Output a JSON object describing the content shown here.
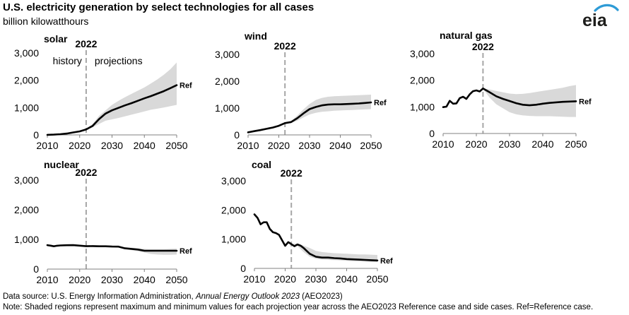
{
  "header": {
    "title": "U.S. electricity generation by select technologies for all cases",
    "units": "billion kilowatthours"
  },
  "logo": {
    "text": "eia",
    "colors": {
      "text": "#1d1d1b",
      "swoosh": "#2e9bd6"
    }
  },
  "footer": {
    "source_prefix": "Data source: U.S. Energy Information Administration, ",
    "source_title": "Annual Energy Outlook 2023",
    "source_suffix": " (AEO2023)",
    "note": "Note: Shaded regions represent maximum and minimum values for each projection year across the AEO2023 Reference case and side cases. Ref=Reference case."
  },
  "colors": {
    "line": "#000000",
    "band": "#d9d9d9",
    "divider": "#a6a6a6",
    "axis": "#808080"
  },
  "chart_data": [
    {
      "type": "area",
      "title": "solar",
      "divider_year": 2022,
      "divider_label": "2022",
      "region_labels": [
        "history",
        "projections"
      ],
      "end_label": "Ref",
      "xlim": [
        2010,
        2050
      ],
      "ylim": [
        0,
        3000
      ],
      "x_ticks": [
        2010,
        2020,
        2030,
        2040,
        2050
      ],
      "y_ticks": [
        0,
        1000,
        2000,
        3000
      ],
      "y_tick_labels": [
        "0",
        "1,000",
        "2,000",
        "3,000"
      ],
      "series": [
        {
          "name": "Ref",
          "x": [
            2010,
            2012,
            2014,
            2016,
            2018,
            2020,
            2022,
            2024,
            2026,
            2028,
            2030,
            2032,
            2034,
            2036,
            2038,
            2040,
            2042,
            2044,
            2046,
            2048,
            2050
          ],
          "values": [
            2,
            10,
            25,
            50,
            90,
            130,
            200,
            330,
            580,
            780,
            900,
            990,
            1080,
            1160,
            1250,
            1340,
            1420,
            1510,
            1600,
            1710,
            1820
          ]
        }
      ],
      "band": {
        "x": [
          2022,
          2024,
          2026,
          2028,
          2030,
          2032,
          2034,
          2036,
          2038,
          2040,
          2042,
          2044,
          2046,
          2048,
          2050
        ],
        "max": [
          220,
          400,
          700,
          900,
          1100,
          1250,
          1380,
          1500,
          1620,
          1740,
          1880,
          2030,
          2200,
          2400,
          2650
        ],
        "min": [
          200,
          280,
          400,
          520,
          570,
          620,
          680,
          740,
          800,
          860,
          920,
          960,
          1000,
          1050,
          1100
        ]
      }
    },
    {
      "type": "area",
      "title": "wind",
      "divider_year": 2022,
      "divider_label": "2022",
      "end_label": "Ref",
      "xlim": [
        2010,
        2050
      ],
      "ylim": [
        0,
        3000
      ],
      "x_ticks": [
        2010,
        2020,
        2030,
        2040,
        2050
      ],
      "y_ticks": [
        0,
        1000,
        2000,
        3000
      ],
      "y_tick_labels": [
        "0",
        "1,000",
        "2,000",
        "3,000"
      ],
      "series": [
        {
          "name": "Ref",
          "x": [
            2010,
            2012,
            2014,
            2016,
            2018,
            2020,
            2022,
            2024,
            2026,
            2028,
            2030,
            2032,
            2034,
            2036,
            2038,
            2040,
            2042,
            2044,
            2046,
            2048,
            2050
          ],
          "values": [
            95,
            140,
            180,
            225,
            275,
            340,
            440,
            480,
            620,
            800,
            960,
            1040,
            1100,
            1130,
            1140,
            1140,
            1150,
            1160,
            1170,
            1190,
            1210
          ]
        }
      ],
      "band": {
        "x": [
          2022,
          2024,
          2026,
          2028,
          2030,
          2032,
          2034,
          2036,
          2038,
          2040,
          2042,
          2044,
          2046,
          2048,
          2050
        ],
        "max": [
          450,
          520,
          720,
          950,
          1150,
          1300,
          1380,
          1420,
          1440,
          1450,
          1460,
          1470,
          1480,
          1490,
          1500
        ],
        "min": [
          430,
          440,
          530,
          650,
          760,
          820,
          860,
          880,
          900,
          910,
          920,
          930,
          940,
          950,
          960
        ]
      }
    },
    {
      "type": "area",
      "title": "natural gas",
      "divider_year": 2022,
      "divider_label": "2022",
      "end_label": "Ref",
      "xlim": [
        2010,
        2050
      ],
      "ylim": [
        0,
        3000
      ],
      "x_ticks": [
        2010,
        2020,
        2030,
        2040,
        2050
      ],
      "y_ticks": [
        0,
        1000,
        2000,
        3000
      ],
      "y_tick_labels": [
        "0",
        "1,000",
        "2,000",
        "3,000"
      ],
      "series": [
        {
          "name": "Ref",
          "x": [
            2010,
            2011,
            2012,
            2013,
            2014,
            2015,
            2016,
            2017,
            2018,
            2019,
            2020,
            2021,
            2022,
            2024,
            2026,
            2028,
            2030,
            2032,
            2034,
            2036,
            2038,
            2040,
            2042,
            2044,
            2046,
            2048,
            2050
          ],
          "values": [
            990,
            1010,
            1230,
            1120,
            1130,
            1330,
            1380,
            1300,
            1470,
            1590,
            1620,
            1580,
            1690,
            1550,
            1400,
            1300,
            1220,
            1140,
            1080,
            1060,
            1080,
            1120,
            1150,
            1170,
            1190,
            1200,
            1210
          ]
        }
      ],
      "band": {
        "x": [
          2022,
          2024,
          2026,
          2028,
          2030,
          2032,
          2034,
          2036,
          2038,
          2040,
          2042,
          2044,
          2046,
          2048,
          2050
        ],
        "max": [
          1700,
          1650,
          1600,
          1550,
          1500,
          1480,
          1490,
          1520,
          1560,
          1600,
          1640,
          1680,
          1720,
          1780,
          1820
        ],
        "min": [
          1680,
          1350,
          1100,
          950,
          800,
          720,
          680,
          660,
          650,
          650,
          650,
          640,
          630,
          620,
          620
        ]
      }
    },
    {
      "type": "area",
      "title": "nuclear",
      "divider_year": 2022,
      "divider_label": "2022",
      "end_label": "Ref",
      "xlim": [
        2010,
        2050
      ],
      "ylim": [
        0,
        3000
      ],
      "x_ticks": [
        2010,
        2020,
        2030,
        2040,
        2050
      ],
      "y_ticks": [
        0,
        1000,
        2000,
        3000
      ],
      "y_tick_labels": [
        "0",
        "1,000",
        "2,000",
        "3,000"
      ],
      "series": [
        {
          "name": "Ref",
          "x": [
            2010,
            2011,
            2012,
            2013,
            2014,
            2016,
            2018,
            2020,
            2022,
            2024,
            2026,
            2028,
            2030,
            2032,
            2034,
            2036,
            2038,
            2040,
            2042,
            2044,
            2046,
            2048,
            2050
          ],
          "values": [
            807,
            790,
            769,
            789,
            797,
            805,
            807,
            790,
            772,
            775,
            770,
            768,
            760,
            758,
            700,
            680,
            660,
            620,
            620,
            620,
            620,
            620,
            620
          ]
        }
      ],
      "band": {
        "x": [
          2022,
          2024,
          2026,
          2028,
          2030,
          2032,
          2034,
          2036,
          2038,
          2040,
          2042,
          2044,
          2046,
          2048,
          2050
        ],
        "max": [
          780,
          790,
          785,
          780,
          775,
          770,
          740,
          720,
          700,
          680,
          670,
          670,
          670,
          680,
          690
        ],
        "min": [
          770,
          770,
          765,
          760,
          750,
          740,
          680,
          640,
          600,
          560,
          510,
          490,
          480,
          480,
          490
        ]
      }
    },
    {
      "type": "area",
      "title": "coal",
      "divider_year": 2022,
      "divider_label": "2022",
      "end_label": "Ref",
      "xlim": [
        2010,
        2050
      ],
      "ylim": [
        0,
        3000
      ],
      "x_ticks": [
        2010,
        2020,
        2030,
        2040,
        2050
      ],
      "y_ticks": [
        0,
        1000,
        2000,
        3000
      ],
      "y_tick_labels": [
        "0",
        "1,000",
        "2,000",
        "3,000"
      ],
      "series": [
        {
          "name": "Ref",
          "x": [
            2010,
            2011,
            2012,
            2013,
            2014,
            2015,
            2016,
            2017,
            2018,
            2019,
            2020,
            2021,
            2022,
            2023,
            2024,
            2025,
            2026,
            2027,
            2028,
            2030,
            2032,
            2034,
            2036,
            2038,
            2040,
            2042,
            2044,
            2046,
            2048,
            2050
          ],
          "values": [
            1850,
            1730,
            1510,
            1580,
            1580,
            1350,
            1240,
            1210,
            1150,
            965,
            775,
            900,
            830,
            760,
            820,
            780,
            700,
            600,
            500,
            400,
            370,
            370,
            350,
            340,
            320,
            310,
            300,
            290,
            280,
            270
          ]
        }
      ],
      "band": {
        "x": [
          2022,
          2024,
          2026,
          2028,
          2030,
          2032,
          2034,
          2036,
          2038,
          2040,
          2042,
          2044,
          2046,
          2048,
          2050
        ],
        "max": [
          840,
          850,
          780,
          700,
          600,
          560,
          540,
          520,
          510,
          500,
          490,
          480,
          480,
          470,
          460
        ],
        "min": [
          820,
          760,
          560,
          400,
          330,
          300,
          290,
          280,
          270,
          260,
          250,
          240,
          230,
          220,
          210
        ]
      }
    }
  ]
}
